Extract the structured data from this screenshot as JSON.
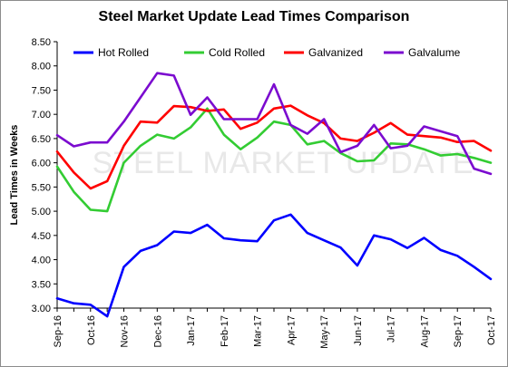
{
  "chart_data": {
    "type": "line",
    "title": "Steel Market Update Lead Times Comparison",
    "xlabel": "",
    "ylabel": "Lead Times in Weeks",
    "ylim": [
      3.0,
      8.5
    ],
    "ytick_step": 0.5,
    "grid": false,
    "legend": "top",
    "watermark": "STEEL MARKET UPDATE",
    "x_tick_labels": [
      "Sep-16",
      "Oct-16",
      "Nov-16",
      "Dec-16",
      "Jan-17",
      "Feb-17",
      "Mar-17",
      "Apr-17",
      "May-17",
      "Jun-17",
      "Jul-17",
      "Aug-17",
      "Sep-17",
      "Oct-17"
    ],
    "points_per_month": 2,
    "series": [
      {
        "name": "Hot Rolled",
        "color": "#0000ff",
        "values": [
          3.2,
          3.1,
          3.07,
          2.83,
          3.85,
          4.18,
          4.3,
          4.58,
          4.55,
          4.72,
          4.44,
          4.4,
          4.38,
          4.81,
          4.93,
          4.55,
          4.4,
          4.25,
          3.88,
          4.5,
          4.42,
          4.24,
          4.45,
          4.2,
          4.08,
          3.85,
          3.6
        ]
      },
      {
        "name": "Cold Rolled",
        "color": "#33cc33",
        "values": [
          5.92,
          5.4,
          5.03,
          5.0,
          6.0,
          6.35,
          6.58,
          6.5,
          6.73,
          7.12,
          6.58,
          6.28,
          6.52,
          6.85,
          6.78,
          6.38,
          6.45,
          6.2,
          6.03,
          6.05,
          6.4,
          6.38,
          6.28,
          6.15,
          6.18,
          6.1,
          6.0
        ]
      },
      {
        "name": "Galvanized",
        "color": "#ff0000",
        "values": [
          6.23,
          5.8,
          5.47,
          5.62,
          6.35,
          6.85,
          6.83,
          7.17,
          7.15,
          7.07,
          7.1,
          6.7,
          6.83,
          7.12,
          7.18,
          6.98,
          6.82,
          6.5,
          6.45,
          6.62,
          6.82,
          6.58,
          6.55,
          6.52,
          6.43,
          6.45,
          6.25
        ]
      },
      {
        "name": "Galvalume",
        "color": "#7b0bcf",
        "values": [
          6.57,
          6.34,
          6.42,
          6.42,
          6.85,
          7.35,
          7.85,
          7.8,
          6.99,
          7.35,
          6.9,
          6.9,
          6.9,
          7.62,
          6.78,
          6.6,
          6.9,
          6.22,
          6.35,
          6.78,
          6.3,
          6.35,
          6.75,
          6.65,
          6.55,
          5.88,
          5.77
        ]
      }
    ]
  }
}
